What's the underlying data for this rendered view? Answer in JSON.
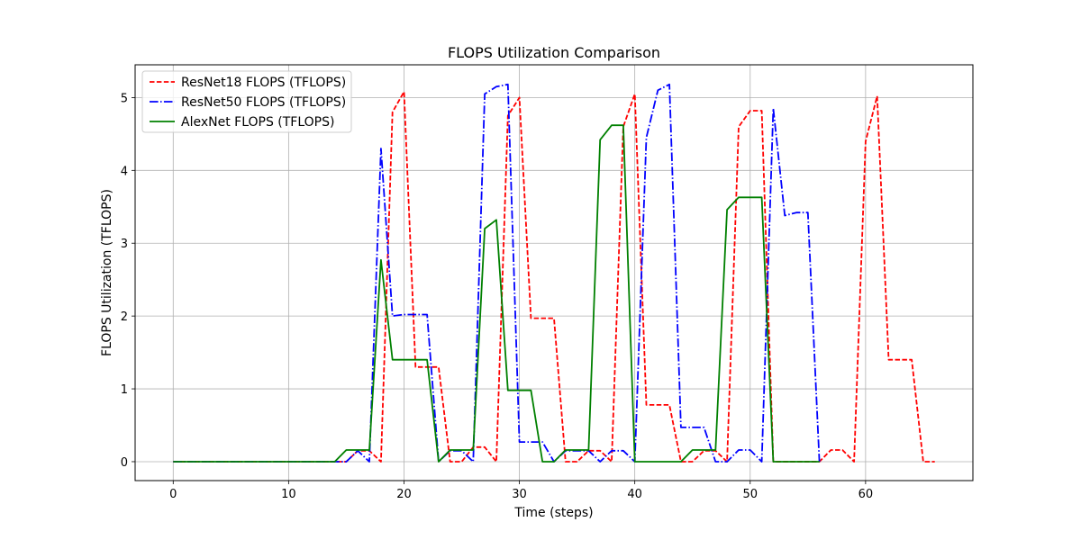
{
  "chart_data": {
    "type": "line",
    "title": "FLOPS Utilization Comparison",
    "xlabel": "Time (steps)",
    "ylabel": "FLOPS Utilization (TFLOPS)",
    "xlim": [
      -3.3,
      69.3
    ],
    "ylim": [
      -0.26,
      5.45
    ],
    "xticks": [
      0,
      10,
      20,
      30,
      40,
      50,
      60
    ],
    "yticks": [
      0,
      1,
      2,
      3,
      4,
      5
    ],
    "grid": true,
    "legend_position": "top-left",
    "series": [
      {
        "name": "ResNet18 FLOPS (TFLOPS)",
        "color": "#ff0000",
        "dash": "dashed",
        "x": [
          0,
          1,
          2,
          3,
          4,
          5,
          6,
          7,
          8,
          9,
          10,
          11,
          12,
          13,
          14,
          15,
          16,
          17,
          18,
          19,
          20,
          21,
          22,
          23,
          24,
          25,
          26,
          27,
          28,
          29,
          30,
          31,
          32,
          33,
          34,
          35,
          36,
          37,
          38,
          39,
          40,
          41,
          42,
          43,
          44,
          45,
          46,
          47,
          48,
          49,
          50,
          51,
          52,
          53,
          54,
          55,
          56,
          57,
          58,
          59,
          60,
          61,
          62,
          63,
          64,
          65,
          66
        ],
        "y": [
          0,
          0,
          0,
          0,
          0,
          0,
          0,
          0,
          0,
          0,
          0,
          0,
          0,
          0,
          0,
          0,
          0.15,
          0.15,
          0,
          4.8,
          5.08,
          1.3,
          1.3,
          1.3,
          0,
          0,
          0.2,
          0.2,
          0,
          4.75,
          5.0,
          1.97,
          1.97,
          1.97,
          0,
          0,
          0.15,
          0.15,
          0,
          4.6,
          5.05,
          0.78,
          0.78,
          0.78,
          0,
          0,
          0.15,
          0.15,
          0,
          4.6,
          4.82,
          4.82,
          0,
          0,
          0,
          0,
          0,
          0.16,
          0.16,
          0,
          4.4,
          5.02,
          1.4,
          1.4,
          1.4,
          0,
          0
        ]
      },
      {
        "name": "ResNet50 FLOPS (TFLOPS)",
        "color": "#0000ff",
        "dash": "dashdot",
        "x": [
          0,
          1,
          2,
          3,
          4,
          5,
          6,
          7,
          8,
          9,
          10,
          11,
          12,
          13,
          14,
          15,
          16,
          17,
          18,
          19,
          20,
          21,
          22,
          23,
          24,
          25,
          26,
          27,
          28,
          29,
          30,
          31,
          32,
          33,
          34,
          35,
          36,
          37,
          38,
          39,
          40,
          41,
          42,
          43,
          44,
          45,
          46,
          47,
          48,
          49,
          50,
          51,
          52,
          53,
          54,
          55,
          56
        ],
        "y": [
          0,
          0,
          0,
          0,
          0,
          0,
          0,
          0,
          0,
          0,
          0,
          0,
          0,
          0,
          0,
          0,
          0.15,
          0,
          4.3,
          2.0,
          2.02,
          2.02,
          2.02,
          0,
          0.15,
          0.15,
          0,
          5.05,
          5.15,
          5.18,
          0.27,
          0.27,
          0.27,
          0,
          0.15,
          0.15,
          0.15,
          0,
          0.15,
          0.15,
          0,
          4.45,
          5.1,
          5.18,
          0.47,
          0.47,
          0.47,
          0,
          0,
          0.16,
          0.16,
          0,
          4.85,
          3.38,
          3.42,
          3.42,
          0
        ]
      },
      {
        "name": "AlexNet FLOPS (TFLOPS)",
        "color": "#008000",
        "dash": "solid",
        "x": [
          0,
          1,
          2,
          3,
          4,
          5,
          6,
          7,
          8,
          9,
          10,
          11,
          12,
          13,
          14,
          15,
          16,
          17,
          18,
          19,
          20,
          21,
          22,
          23,
          24,
          25,
          26,
          27,
          28,
          29,
          30,
          31,
          32,
          33,
          34,
          35,
          36,
          37,
          38,
          39,
          40,
          41,
          42,
          43,
          44,
          45,
          46,
          47,
          48,
          49,
          50,
          51,
          52,
          53,
          54,
          55,
          56
        ],
        "y": [
          0,
          0,
          0,
          0,
          0,
          0,
          0,
          0,
          0,
          0,
          0,
          0,
          0,
          0,
          0,
          0.16,
          0.16,
          0.16,
          2.77,
          1.4,
          1.4,
          1.4,
          1.4,
          0,
          0.16,
          0.16,
          0.16,
          3.2,
          3.32,
          0.98,
          0.98,
          0.98,
          0,
          0,
          0.16,
          0.16,
          0.16,
          4.42,
          4.62,
          4.62,
          0,
          0,
          0,
          0,
          0,
          0.16,
          0.16,
          0.16,
          3.46,
          3.63,
          3.63,
          3.63,
          0,
          0,
          0,
          0,
          0
        ]
      }
    ]
  }
}
